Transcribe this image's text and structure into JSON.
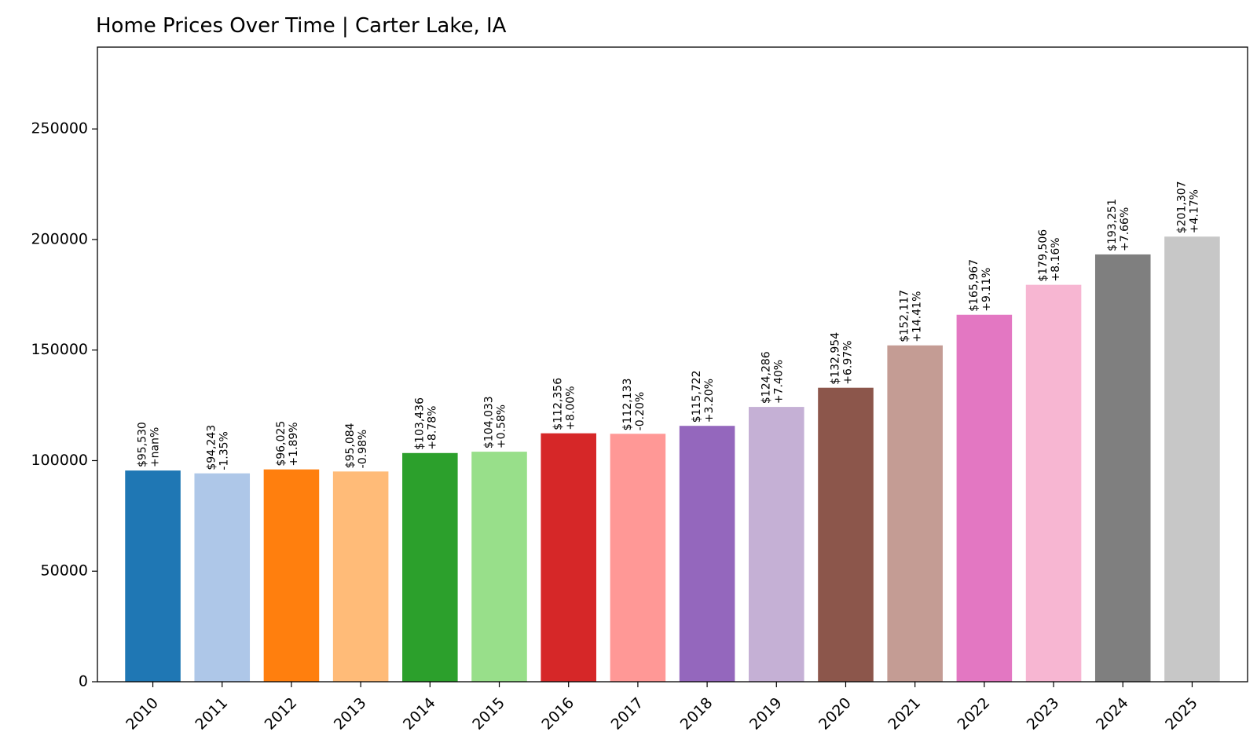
{
  "chart_data": {
    "type": "bar",
    "title": "Home Prices Over Time | Carter Lake, IA",
    "xlabel": "",
    "ylabel": "",
    "categories": [
      "2010",
      "2011",
      "2012",
      "2013",
      "2014",
      "2015",
      "2016",
      "2017",
      "2018",
      "2019",
      "2020",
      "2021",
      "2022",
      "2023",
      "2024",
      "2025"
    ],
    "values": [
      95530,
      94243,
      96025,
      95084,
      103436,
      104033,
      112356,
      112133,
      115722,
      124286,
      132954,
      152117,
      165967,
      179506,
      193251,
      201307
    ],
    "price_labels": [
      "$95,530",
      "$94,243",
      "$96,025",
      "$95,084",
      "$103,436",
      "$104,033",
      "$112,356",
      "$112,133",
      "$115,722",
      "$124,286",
      "$132,954",
      "$152,117",
      "$165,967",
      "$179,506",
      "$193,251",
      "$201,307"
    ],
    "change_labels": [
      "+nan%",
      "-1.35%",
      "+1.89%",
      "-0.98%",
      "+8.78%",
      "+0.58%",
      "+8.00%",
      "-0.20%",
      "+3.20%",
      "+7.40%",
      "+6.97%",
      "+14.41%",
      "+9.11%",
      "+8.16%",
      "+7.66%",
      "+4.17%"
    ],
    "colors": [
      "#1f77b4",
      "#aec7e8",
      "#ff7f0e",
      "#ffbb78",
      "#2ca02c",
      "#98df8a",
      "#d62728",
      "#ff9896",
      "#9467bd",
      "#c5b0d5",
      "#8c564b",
      "#c49c94",
      "#e377c2",
      "#f7b6d2",
      "#7f7f7f",
      "#c7c7c7"
    ],
    "ylim": [
      0,
      287000
    ],
    "yticks": [
      0,
      50000,
      100000,
      150000,
      200000,
      250000
    ],
    "ytick_labels": [
      "0",
      "50000",
      "100000",
      "150000",
      "200000",
      "250000"
    ],
    "grid": false,
    "legend": "none"
  }
}
